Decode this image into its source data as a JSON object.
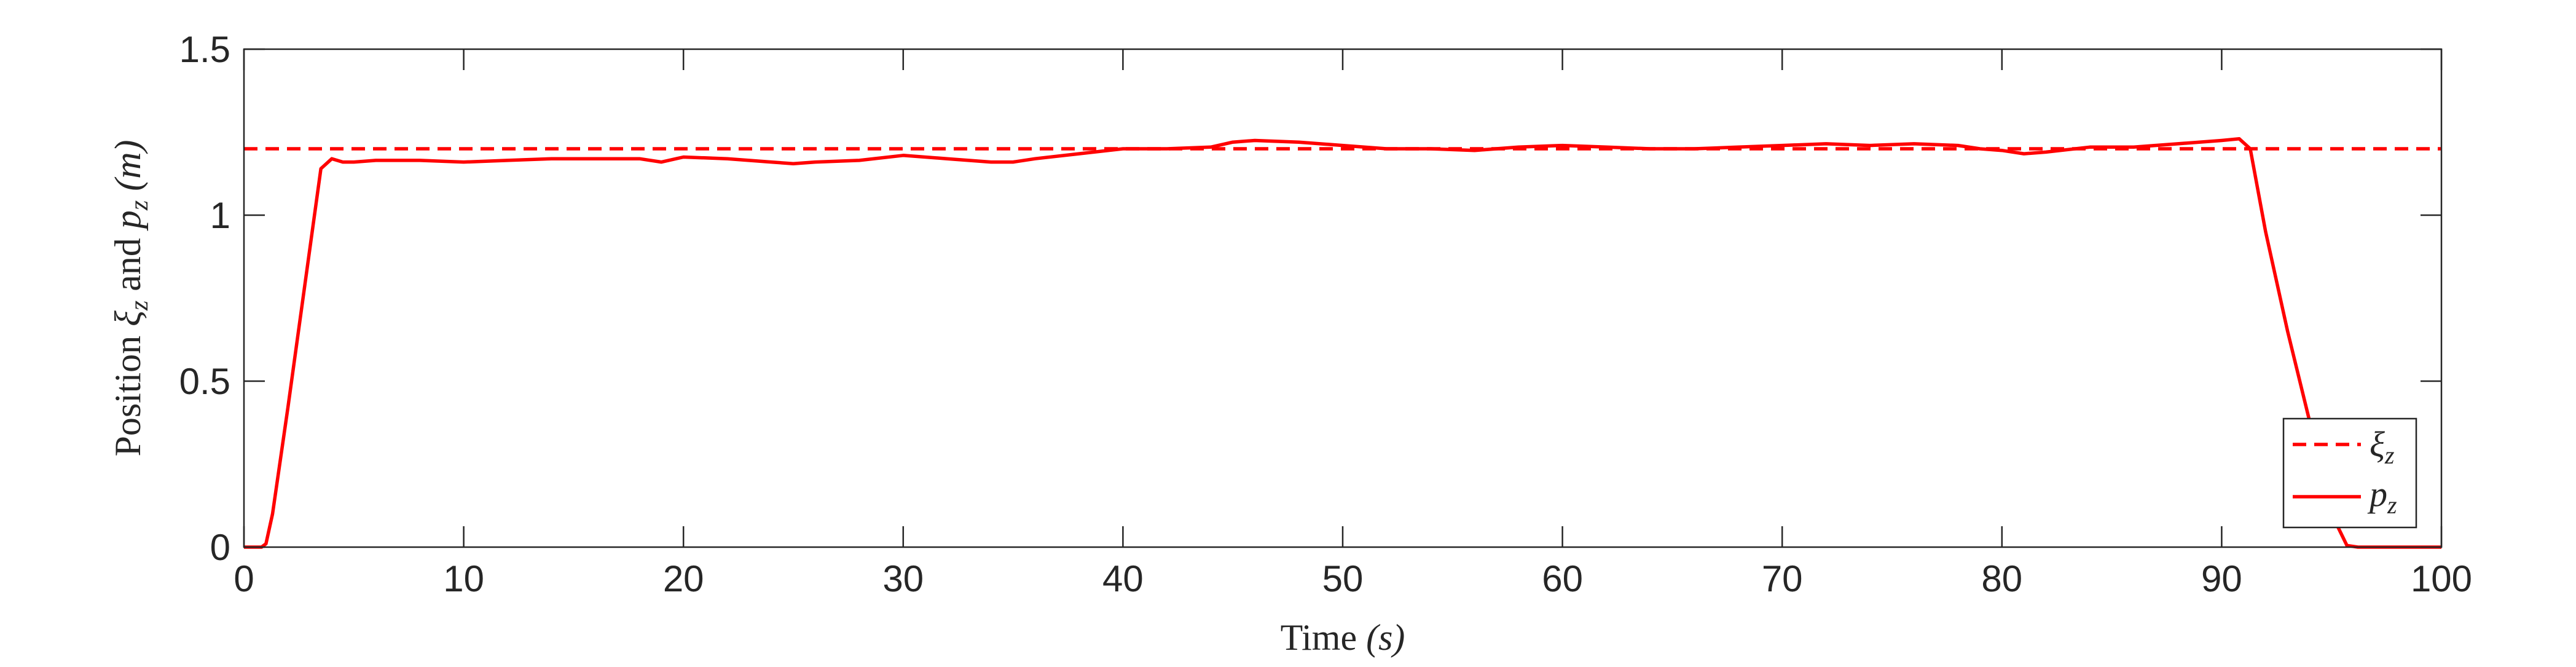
{
  "chart_data": {
    "type": "line",
    "xlabel": "Time (s)",
    "xlabel_parts": {
      "word": "Time ",
      "unit": "(s)"
    },
    "ylabel": "Position ξz and pz (m)",
    "ylabel_parts": {
      "position": "Position ",
      "xi": "ξ",
      "z_sub": "z",
      "and": " and ",
      "p": "p",
      "m_unit": "(m)"
    },
    "xlim": [
      0,
      100
    ],
    "ylim": [
      0,
      1.5
    ],
    "x_ticks": [
      0,
      10,
      20,
      30,
      40,
      50,
      60,
      70,
      80,
      90,
      100
    ],
    "x_tick_labels": [
      "0",
      "10",
      "20",
      "30",
      "40",
      "50",
      "60",
      "70",
      "80",
      "90",
      "100"
    ],
    "y_ticks": [
      0,
      0.5,
      1,
      1.5
    ],
    "y_tick_labels": [
      "0",
      "0.5",
      "1",
      "1.5"
    ],
    "grid": false,
    "legend_position": "bottom-right",
    "series": [
      {
        "name": "ξz",
        "legend_label": {
          "main": "ξ",
          "sub": "z"
        },
        "style": "dashed",
        "color": "#ff0000",
        "x": [
          0,
          100
        ],
        "y": [
          1.2,
          1.2
        ]
      },
      {
        "name": "pz",
        "legend_label": {
          "main": "p",
          "sub": "z"
        },
        "style": "solid",
        "color": "#ff0000",
        "x": [
          0,
          0.8,
          1.0,
          1.3,
          2.0,
          3.0,
          3.5,
          4.0,
          4.5,
          5,
          6,
          8,
          10,
          12,
          14,
          16,
          18,
          19,
          20,
          22,
          24,
          25,
          26,
          28,
          30,
          32,
          34,
          35,
          36,
          38,
          40,
          42,
          44,
          45,
          46,
          48,
          50,
          52,
          54,
          56,
          58,
          60,
          62,
          64,
          66,
          68,
          70,
          72,
          74,
          76,
          78,
          79,
          80,
          81,
          82,
          84,
          86,
          88,
          90,
          90.8,
          91.3,
          92,
          93,
          94,
          95,
          95.7,
          96.2,
          97,
          100
        ],
        "y": [
          0,
          0,
          0.01,
          0.1,
          0.42,
          0.9,
          1.14,
          1.17,
          1.16,
          1.16,
          1.165,
          1.165,
          1.16,
          1.165,
          1.17,
          1.17,
          1.17,
          1.16,
          1.175,
          1.17,
          1.16,
          1.155,
          1.16,
          1.165,
          1.18,
          1.17,
          1.16,
          1.16,
          1.17,
          1.185,
          1.2,
          1.2,
          1.205,
          1.22,
          1.225,
          1.22,
          1.21,
          1.2,
          1.2,
          1.195,
          1.205,
          1.21,
          1.205,
          1.2,
          1.2,
          1.205,
          1.21,
          1.215,
          1.21,
          1.215,
          1.21,
          1.2,
          1.195,
          1.185,
          1.19,
          1.205,
          1.205,
          1.215,
          1.225,
          1.23,
          1.2,
          0.95,
          0.65,
          0.38,
          0.1,
          0.005,
          0,
          0,
          0
        ]
      }
    ]
  }
}
